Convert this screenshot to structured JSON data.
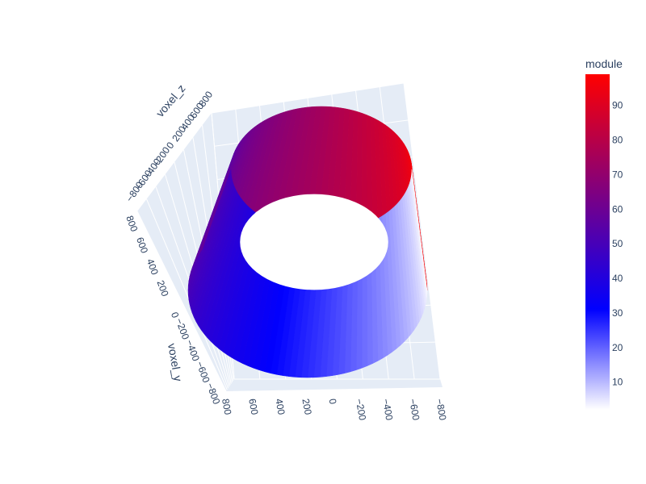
{
  "chart_data": {
    "type": "surface",
    "surface_shape": "cylinder",
    "axes": {
      "x": {
        "label": "",
        "ticks": [
          "−800",
          "−600",
          "−400",
          "−200",
          "0",
          "200",
          "400",
          "600",
          "800"
        ],
        "range": [
          -800,
          800
        ]
      },
      "y": {
        "label": "voxel_y",
        "ticks": [
          "−800",
          "−600",
          "−400",
          "−200",
          "0",
          "200",
          "400",
          "600",
          "800"
        ],
        "range": [
          -800,
          800
        ]
      },
      "z": {
        "label": "voxel_z",
        "ticks": [
          "−800",
          "−600",
          "−400",
          "−200",
          "0",
          "200",
          "400",
          "600",
          "800"
        ],
        "range": [
          -800,
          800
        ]
      }
    },
    "colorbar": {
      "title": "module",
      "range": [
        2,
        99
      ],
      "ticks": [
        "10",
        "20",
        "30",
        "40",
        "50",
        "60",
        "70",
        "80",
        "90"
      ],
      "tick_values": [
        10,
        20,
        30,
        40,
        50,
        60,
        70,
        80,
        90
      ],
      "colorscale": [
        [
          0,
          "#ffffff"
        ],
        [
          0.3,
          "#0000ff"
        ],
        [
          1,
          "#ff0000"
        ]
      ]
    },
    "colors": {
      "scene_background": "#e5ecf6",
      "grid": "#ffffff",
      "text": "#2a3f5f"
    }
  }
}
